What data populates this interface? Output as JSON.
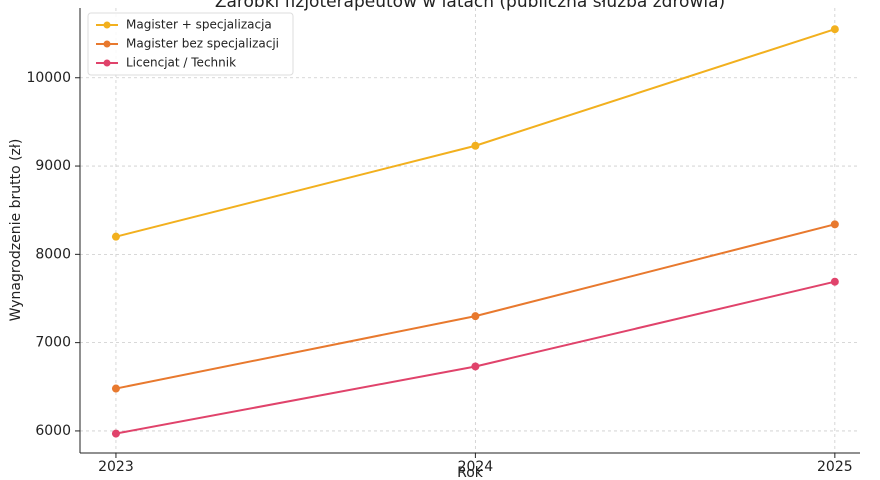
{
  "chart_data": {
    "type": "line",
    "title": "Zarobki fizjoterapeutów w latach (publiczna służba zdrowia)",
    "xlabel": "Rok",
    "ylabel": "Wynagrodzenie brutto (zł)",
    "x": [
      2023,
      2024,
      2025
    ],
    "series": [
      {
        "name": "Magister + specjalizacja",
        "color": "#f2b01e",
        "values": [
          8200,
          9230,
          10550
        ]
      },
      {
        "name": "Magister bez specjalizacji",
        "color": "#e8792e",
        "values": [
          6480,
          7300,
          8340
        ]
      },
      {
        "name": "Licencjat / Technik",
        "color": "#e0436b",
        "values": [
          5970,
          6730,
          7690
        ]
      }
    ],
    "xlim": [
      2022.9,
      2025.07
    ],
    "xticks": [
      2023,
      2024,
      2025
    ],
    "ylim": [
      5750,
      10790
    ],
    "yticks": [
      6000,
      7000,
      8000,
      9000,
      10000
    ],
    "grid": true,
    "legend": "upper left"
  }
}
